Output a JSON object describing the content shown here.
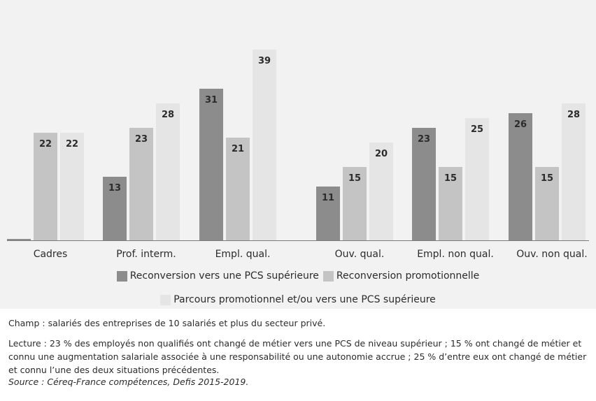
{
  "chart_data": {
    "type": "bar",
    "categories": [
      "Cadres",
      "Prof. interm.",
      "Empl. qual.",
      "Ouv. qual.",
      "Empl. non qual.",
      "Ouv. non qual."
    ],
    "series": [
      {
        "name": "Reconversion vers une PCS supérieure",
        "color": "#8c8c8c",
        "values": [
          0,
          13,
          31,
          11,
          23,
          26
        ],
        "labels": [
          "",
          "13",
          "31",
          "11",
          "23",
          "26"
        ]
      },
      {
        "name": "Reconversion promotionnelle",
        "color": "#c4c4c4",
        "values": [
          22,
          23,
          21,
          15,
          15,
          15
        ],
        "labels": [
          "22",
          "23",
          "21",
          "15",
          "15",
          "15"
        ]
      },
      {
        "name": "Parcours promotionnel et/ou vers une PCS supérieure",
        "color": "#e5e5e5",
        "values": [
          22,
          28,
          39,
          20,
          25,
          28
        ],
        "labels": [
          "22",
          "28",
          "39",
          "20",
          "25",
          "28"
        ]
      }
    ],
    "ylim": [
      0,
      42
    ],
    "grid": false,
    "legend_position": "bottom",
    "title": "",
    "xlabel": "",
    "ylabel": ""
  },
  "notes": {
    "champ": "Champ : salariés des entreprises de 10 salariés et plus du secteur privé.",
    "lecture": "Lecture : 23 % des employés non qualifiés ont changé de métier vers une PCS de niveau supérieur ; 15 % ont changé de métier et connu une augmentation salariale associée à une responsabilité ou une autonomie accrue ; 25 % d’entre eux ont changé de métier et connu l’une des deux situations précédentes.",
    "source": "Source : Céreq-France compétences, Defis 2015-2019."
  }
}
